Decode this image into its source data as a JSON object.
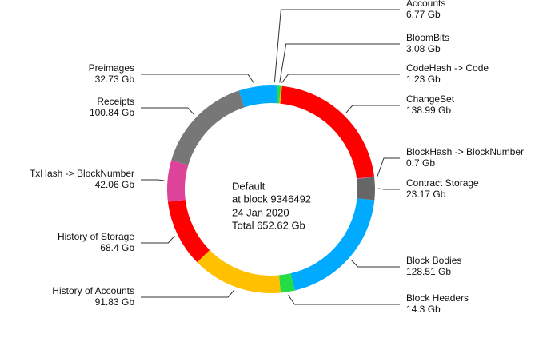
{
  "chart_data": {
    "type": "pie",
    "categories": [
      "Accounts",
      "BloomBits",
      "CodeHash -> Code",
      "ChangeSet",
      "BlockHash -> BlockNumber",
      "Contract Storage",
      "Block Bodies",
      "Block Headers",
      "History of Accounts",
      "History of Storage",
      "TxHash -> BlockNumber",
      "Receipts",
      "Preimages"
    ],
    "values": [
      6.77,
      3.08,
      1.23,
      138.99,
      0.7,
      23.17,
      128.51,
      14.3,
      91.83,
      68.4,
      42.06,
      100.84,
      32.73
    ],
    "value_labels": [
      "6.77 Gb",
      "3.08 Gb",
      "1.23 Gb",
      "138.99 Gb",
      "0.7 Gb",
      "23.17 Gb",
      "128.51 Gb",
      "14.3 Gb",
      "91.83 Gb",
      "68.4 Gb",
      "42.06 Gb",
      "100.84 Gb",
      "32.73 Gb"
    ],
    "colors": [
      "#00aaff",
      "#22dd44",
      "#ffaa00",
      "#ff0000",
      "#dd4499",
      "#666666",
      "#00aaff",
      "#22dd44",
      "#ffc000",
      "#ff0000",
      "#dd4499",
      "#777777",
      "#00aaff"
    ],
    "annotations": [
      "Default",
      "at block 9346492",
      "24 Jan 2020",
      "Total 652.62 Gb"
    ]
  }
}
